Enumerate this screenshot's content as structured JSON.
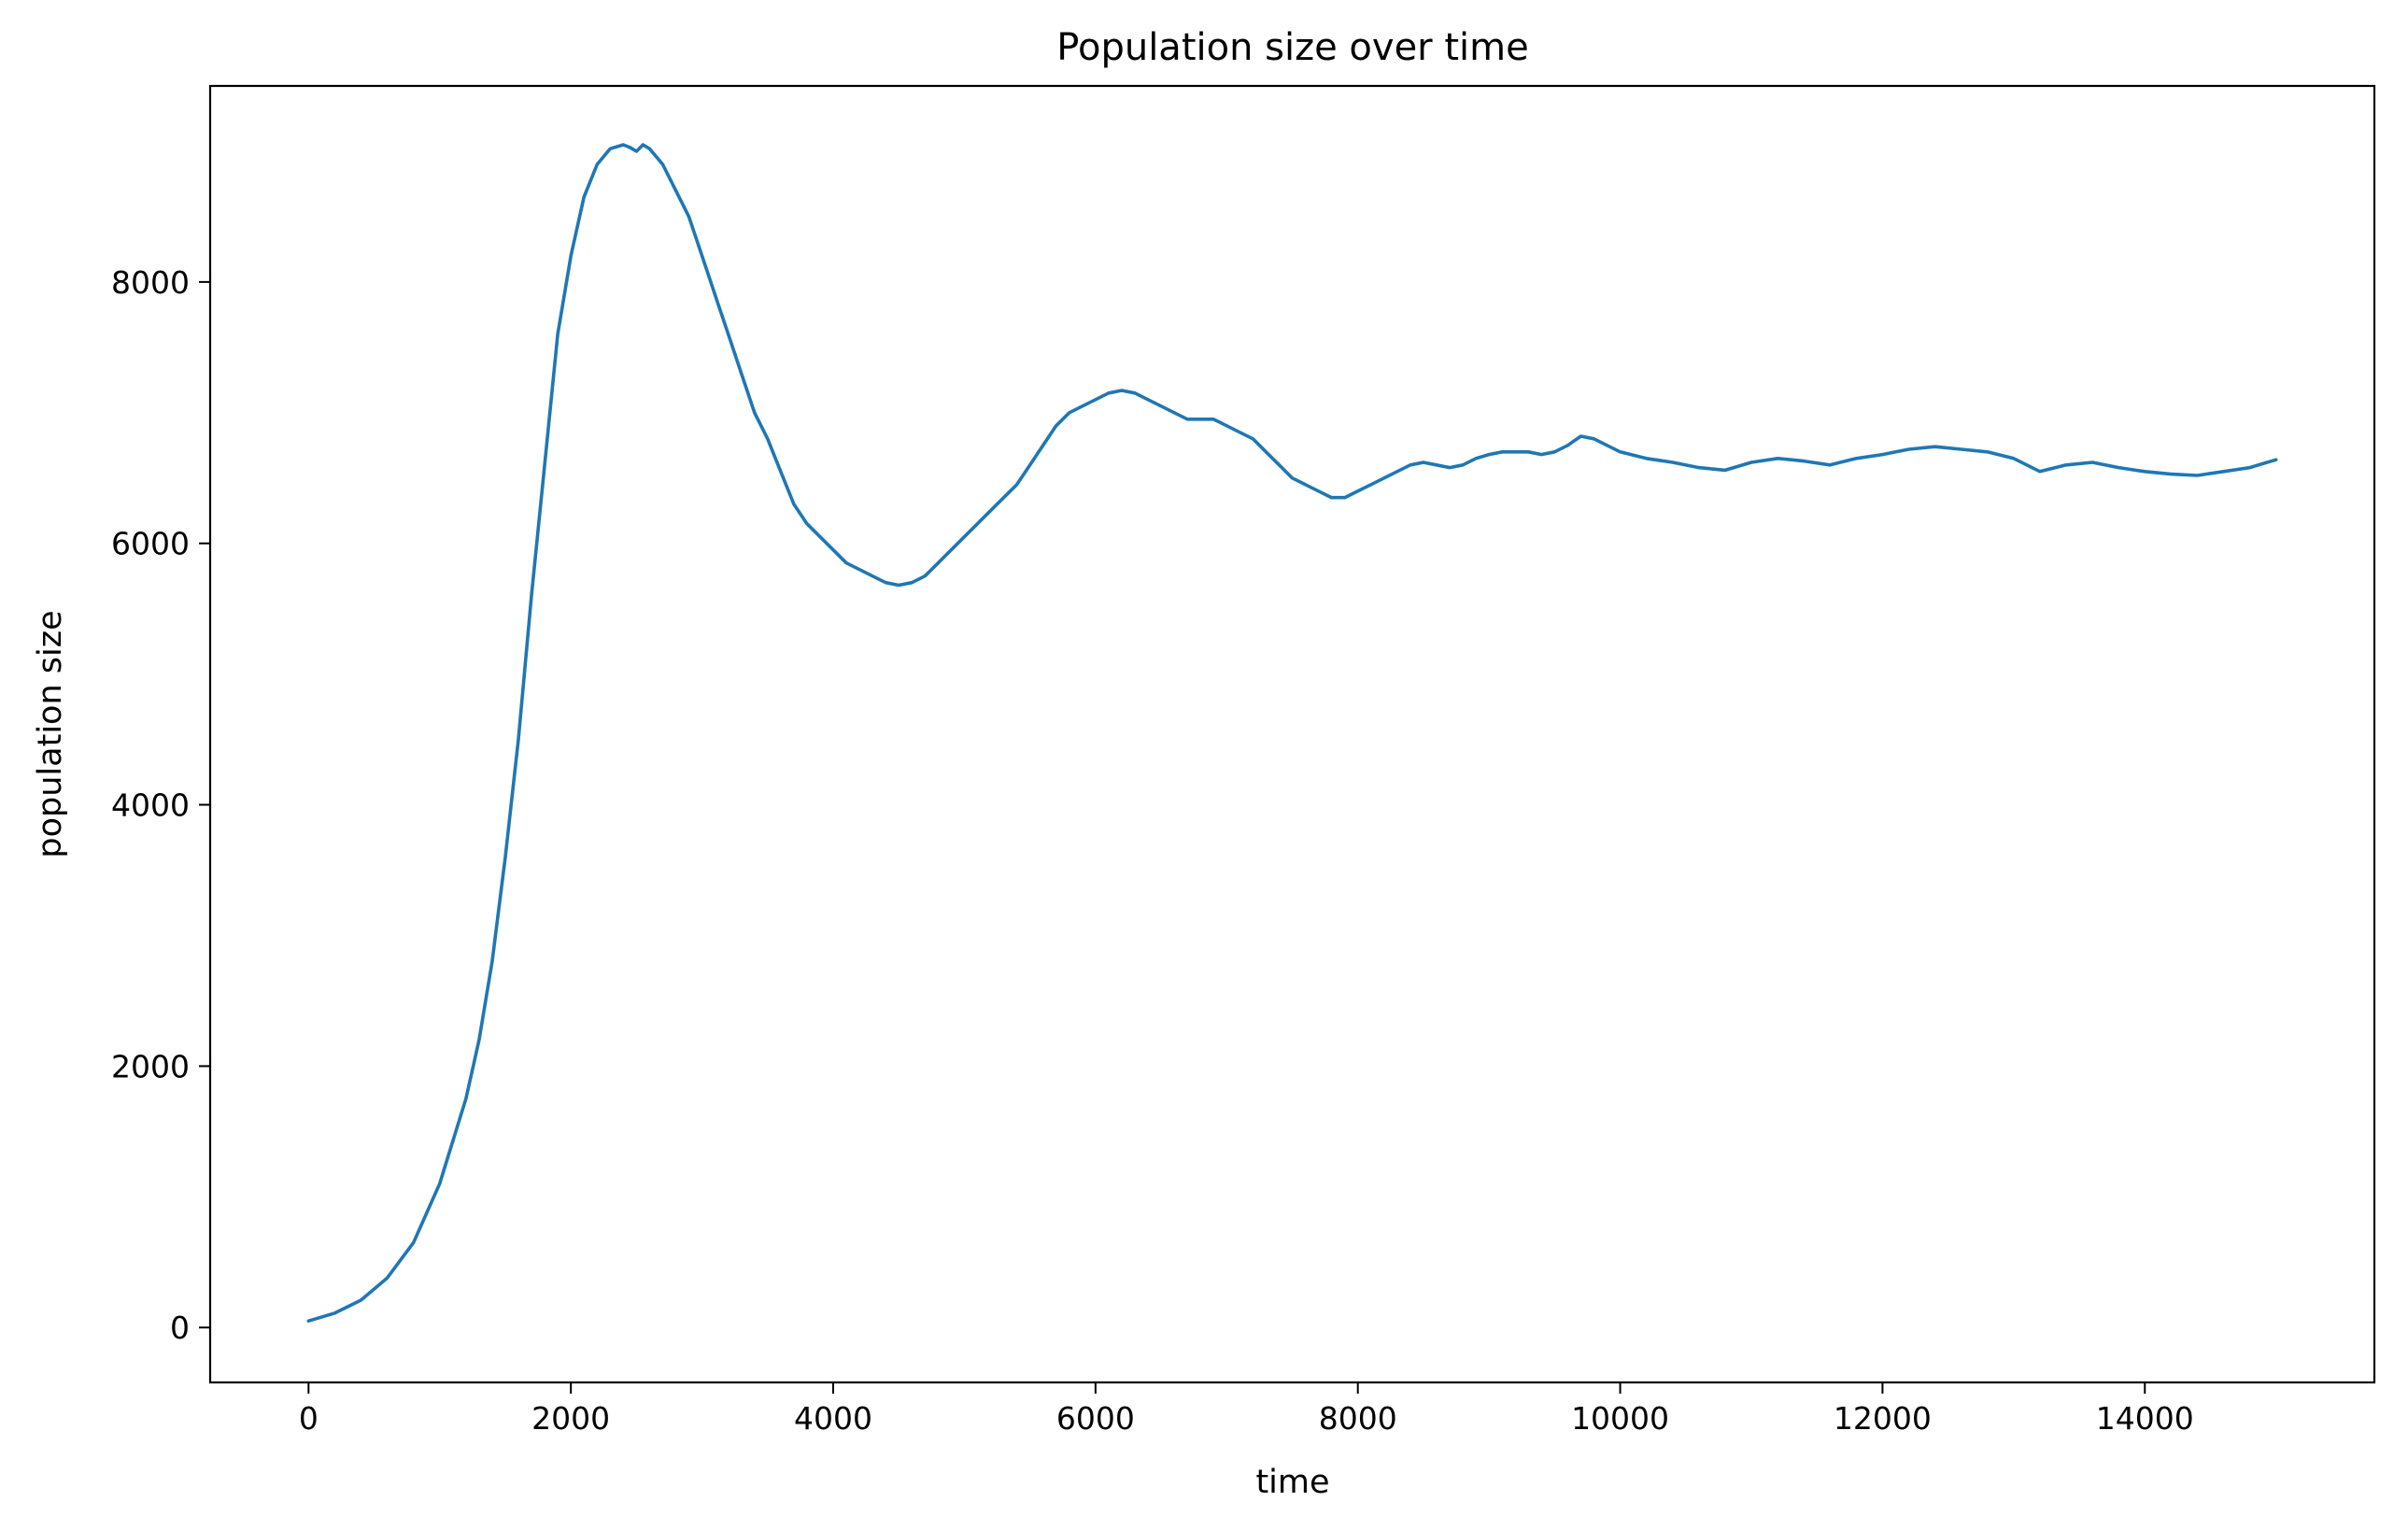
{
  "chart_data": {
    "type": "line",
    "title": "Population size over time",
    "xlabel": "time",
    "ylabel": "population size",
    "xlim": [
      -750,
      15750
    ],
    "ylim": [
      -420,
      9500
    ],
    "xticks": [
      0,
      2000,
      4000,
      6000,
      8000,
      10000,
      12000,
      14000
    ],
    "yticks": [
      0,
      2000,
      4000,
      6000,
      8000
    ],
    "grid": false,
    "legend": "none",
    "line_color": "#1f77b4",
    "series": [
      {
        "x": [
          0,
          200,
          400,
          600,
          800,
          1000,
          1200,
          1300,
          1400,
          1500,
          1600,
          1700,
          1800,
          1900,
          2000,
          2100,
          2200,
          2300,
          2400,
          2450,
          2500,
          2550,
          2600,
          2700,
          2800,
          2900,
          3000,
          3100,
          3200,
          3300,
          3400,
          3500,
          3600,
          3700,
          3800,
          3900,
          4000,
          4100,
          4200,
          4300,
          4400,
          4500,
          4600,
          4700,
          4800,
          4900,
          5000,
          5100,
          5200,
          5300,
          5400,
          5500,
          5600,
          5700,
          5800,
          5900,
          6000,
          6100,
          6200,
          6300,
          6400,
          6500,
          6600,
          6700,
          6800,
          6900,
          7000,
          7100,
          7200,
          7300,
          7400,
          7500,
          7600,
          7700,
          7800,
          7900,
          8000,
          8100,
          8200,
          8300,
          8400,
          8500,
          8600,
          8700,
          8800,
          8900,
          9000,
          9100,
          9200,
          9300,
          9400,
          9500,
          9600,
          9700,
          9800,
          9900,
          10000,
          10200,
          10400,
          10600,
          10800,
          11000,
          11200,
          11400,
          11600,
          11800,
          12000,
          12200,
          12400,
          12600,
          12800,
          13000,
          13100,
          13200,
          13400,
          13600,
          13800,
          14000,
          14200,
          14400,
          14600,
          14800,
          15000
        ],
        "y": [
          50,
          110,
          210,
          380,
          650,
          1100,
          1750,
          2200,
          2800,
          3600,
          4500,
          5600,
          6600,
          7600,
          8200,
          8650,
          8900,
          9020,
          9050,
          9030,
          9000,
          9050,
          9020,
          8900,
          8700,
          8500,
          8200,
          7900,
          7600,
          7300,
          7000,
          6800,
          6550,
          6300,
          6150,
          6050,
          5950,
          5850,
          5800,
          5750,
          5700,
          5680,
          5700,
          5750,
          5850,
          5950,
          6050,
          6150,
          6250,
          6350,
          6450,
          6600,
          6750,
          6900,
          7000,
          7050,
          7100,
          7150,
          7170,
          7150,
          7100,
          7050,
          7000,
          6950,
          6950,
          6950,
          6900,
          6850,
          6800,
          6700,
          6600,
          6500,
          6450,
          6400,
          6350,
          6350,
          6400,
          6450,
          6500,
          6550,
          6600,
          6620,
          6600,
          6580,
          6600,
          6650,
          6680,
          6700,
          6700,
          6700,
          6680,
          6700,
          6750,
          6820,
          6800,
          6750,
          6700,
          6650,
          6620,
          6580,
          6560,
          6620,
          6650,
          6630,
          6600,
          6650,
          6680,
          6720,
          6740,
          6720,
          6700,
          6650,
          6600,
          6550,
          6600,
          6620,
          6580,
          6550,
          6530,
          6520,
          6550,
          6580,
          6640
        ]
      }
    ]
  }
}
